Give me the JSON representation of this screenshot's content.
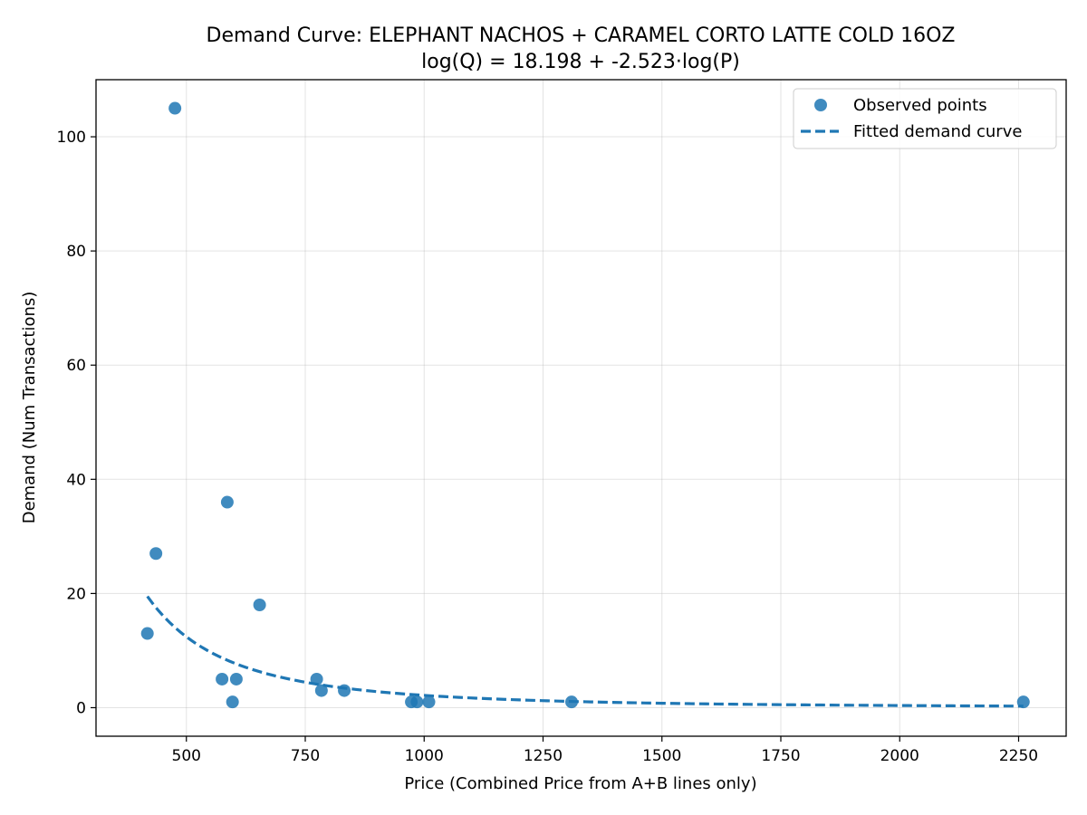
{
  "chart_data": {
    "type": "scatter",
    "title": "Demand Curve: ELEPHANT NACHOS + CARAMEL CORTO LATTE COLD 16OZ",
    "subtitle": "log(Q) = 18.198 + -2.523·log(P)",
    "xlabel": "Price (Combined Price from A+B lines only)",
    "ylabel": "Demand (Num Transactions)",
    "xlim": [
      310,
      2350
    ],
    "ylim": [
      -5,
      110
    ],
    "x_ticks": [
      500,
      750,
      1000,
      1250,
      1500,
      1750,
      2000,
      2250
    ],
    "y_ticks": [
      0,
      20,
      40,
      60,
      80,
      100
    ],
    "grid": true,
    "legend_position": "top-right",
    "colors": {
      "points": "#1f77b4",
      "curve": "#1f77b4"
    },
    "series": [
      {
        "name": "Observed points",
        "kind": "scatter",
        "points": [
          {
            "x": 418,
            "y": 13
          },
          {
            "x": 436,
            "y": 27
          },
          {
            "x": 476,
            "y": 105
          },
          {
            "x": 575,
            "y": 5
          },
          {
            "x": 586,
            "y": 36
          },
          {
            "x": 597,
            "y": 1
          },
          {
            "x": 605,
            "y": 5
          },
          {
            "x": 654,
            "y": 18
          },
          {
            "x": 774,
            "y": 5
          },
          {
            "x": 784,
            "y": 3
          },
          {
            "x": 832,
            "y": 3
          },
          {
            "x": 973,
            "y": 1
          },
          {
            "x": 985,
            "y": 1
          },
          {
            "x": 1010,
            "y": 1
          },
          {
            "x": 1310,
            "y": 1
          },
          {
            "x": 2260,
            "y": 1
          }
        ]
      },
      {
        "name": "Fitted demand curve",
        "kind": "line",
        "style": "dashed",
        "intercept": 18.198,
        "slope": -2.523,
        "x_range": [
          418,
          2260
        ]
      }
    ]
  }
}
